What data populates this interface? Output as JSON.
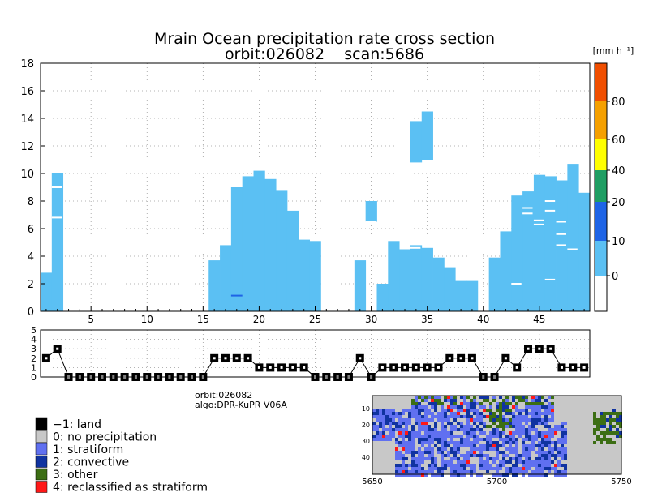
{
  "chart_data": [
    {
      "type": "heatmap",
      "title": "Mrain Ocean precipitation rate cross section",
      "subtitle": "orbit:026082    scan:5686",
      "xlim": [
        1,
        49
      ],
      "ylim": [
        0,
        18
      ],
      "x_ticks": [
        5,
        10,
        15,
        20,
        25,
        30,
        35,
        40,
        45
      ],
      "y_ticks": [
        0,
        2,
        4,
        6,
        8,
        10,
        12,
        14,
        16,
        18
      ],
      "grid": true,
      "colorbar": {
        "unit": "[mm h⁻¹]",
        "tick_labels": [
          "0",
          "10",
          "20",
          "40",
          "60",
          "80"
        ],
        "bins": [
          {
            "color": "#ffffff"
          },
          {
            "color": "#5bc0f3"
          },
          {
            "color": "#1e64e6"
          },
          {
            "color": "#1f9e63"
          },
          {
            "color": "#ffff00"
          },
          {
            "color": "#f5a000"
          },
          {
            "color": "#f04e00"
          }
        ]
      },
      "columns": [
        {
          "x": 1,
          "top": 2.8
        },
        {
          "x": 2,
          "top": 10
        },
        {
          "x": 16,
          "top": 3.7
        },
        {
          "x": 17,
          "top": 4.8
        },
        {
          "x": 18,
          "top": 9.0
        },
        {
          "x": 19,
          "top": 9.8
        },
        {
          "x": 20,
          "top": 10.2
        },
        {
          "x": 21,
          "top": 9.6
        },
        {
          "x": 22,
          "top": 8.8
        },
        {
          "x": 23,
          "top": 7.3
        },
        {
          "x": 24,
          "top": 5.2
        },
        {
          "x": 25,
          "top": 5.1
        },
        {
          "x": 29,
          "top": 3.7
        },
        {
          "x": 31,
          "top": 2.0
        },
        {
          "x": 32,
          "top": 5.1
        },
        {
          "x": 33,
          "top": 4.5
        },
        {
          "x": 34,
          "top": 4.8
        },
        {
          "x": 35,
          "top": 4.6
        },
        {
          "x": 36,
          "top": 3.9
        },
        {
          "x": 37,
          "top": 3.2
        },
        {
          "x": 38,
          "top": 2.2
        },
        {
          "x": 39,
          "top": 2.2
        },
        {
          "x": 41,
          "top": 3.9
        },
        {
          "x": 42,
          "top": 5.8
        },
        {
          "x": 43,
          "top": 8.4
        },
        {
          "x": 44,
          "top": 8.7
        },
        {
          "x": 45,
          "top": 9.9
        },
        {
          "x": 46,
          "top": 9.8
        },
        {
          "x": 47,
          "top": 9.5
        },
        {
          "x": 48,
          "top": 10.7
        },
        {
          "x": 49,
          "top": 8.6
        }
      ],
      "floating_cells": [
        {
          "x": 30,
          "y0": 6.5,
          "y1": 8.0
        },
        {
          "x": 34,
          "y0": 10.8,
          "y1": 13.8
        },
        {
          "x": 35,
          "y0": 11.0,
          "y1": 14.5
        }
      ],
      "convective_cells": [
        {
          "x": 18,
          "y0": 1.1,
          "y1": 1.2
        }
      ]
    },
    {
      "type": "line",
      "ylim": [
        0,
        5
      ],
      "y_ticks": [
        0,
        1,
        2,
        3,
        4,
        5
      ],
      "x": [
        1,
        2,
        3,
        4,
        5,
        6,
        7,
        8,
        9,
        10,
        11,
        12,
        13,
        14,
        15,
        16,
        17,
        18,
        19,
        20,
        21,
        22,
        23,
        24,
        25,
        26,
        27,
        28,
        29,
        30,
        31,
        32,
        33,
        34,
        35,
        36,
        37,
        38,
        39,
        40,
        41,
        42,
        43,
        44,
        45,
        46,
        47,
        48,
        49
      ],
      "values": [
        2,
        3,
        0,
        0,
        0,
        0,
        0,
        0,
        0,
        0,
        0,
        0,
        0,
        0,
        0,
        2,
        2,
        2,
        2,
        1,
        1,
        1,
        1,
        1,
        0,
        0,
        0,
        0,
        2,
        0,
        1,
        1,
        1,
        1,
        1,
        1,
        2,
        2,
        2,
        0,
        0,
        2,
        1,
        3,
        3,
        3,
        1,
        1,
        1
      ]
    },
    {
      "type": "heatmap",
      "xlim": [
        5650,
        5750
      ],
      "x_ticks": [
        5650,
        5700,
        5750
      ],
      "y_ticks": [
        10,
        20,
        30,
        40
      ],
      "colors": {
        "land": "#000000",
        "no_precipitation": "#c8c8c8",
        "stratiform": "#6070f0",
        "convective": "#1033a0",
        "other": "#3c6e14",
        "reclassified": "#ff1818"
      }
    }
  ],
  "info": {
    "orbit": "orbit:026082",
    "algo": "algo:DPR-KuPR V06A"
  },
  "legend": [
    {
      "label": "−1: land",
      "color": "#000000"
    },
    {
      "label": "0: no precipitation",
      "color": "#c8c8c8"
    },
    {
      "label": "1: stratiform",
      "color": "#6070f0"
    },
    {
      "label": "2: convective",
      "color": "#1033a0"
    },
    {
      "label": "3: other",
      "color": "#3c6e14"
    },
    {
      "label": "4: reclassified as stratiform",
      "color": "#ff1818"
    }
  ]
}
